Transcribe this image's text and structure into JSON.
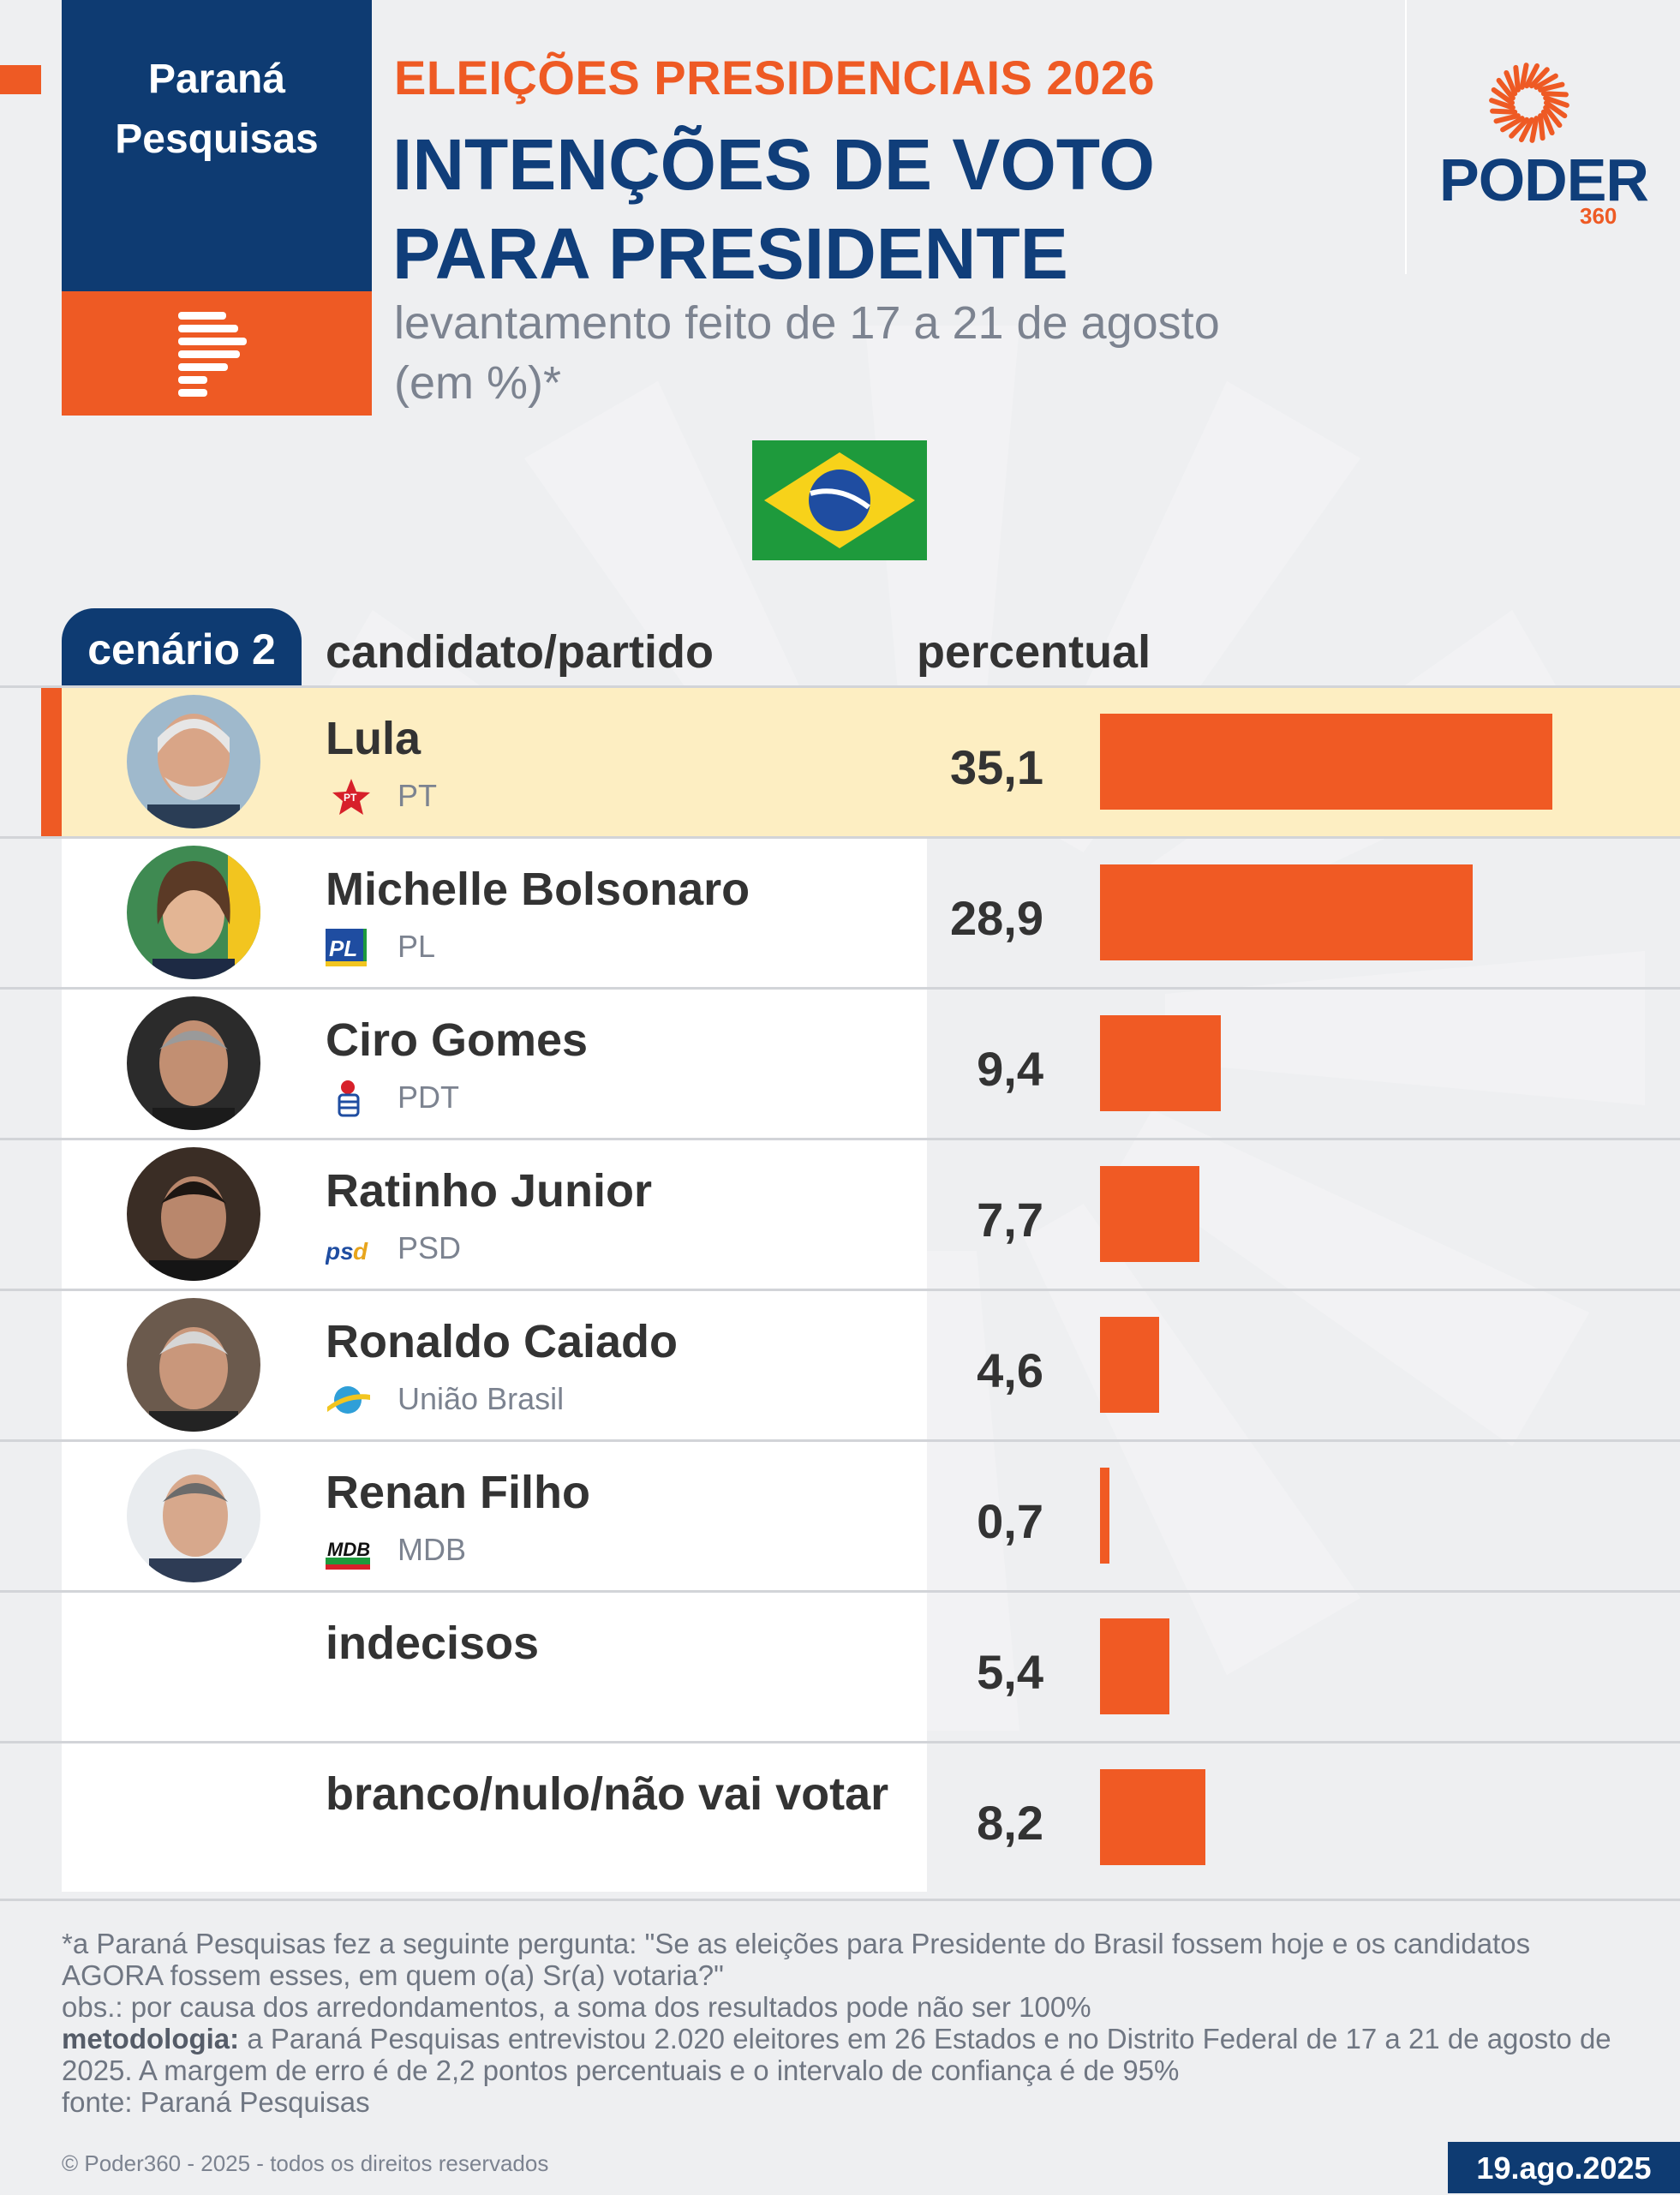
{
  "brand": {
    "pollster_line1": "Paraná",
    "pollster_line2": "Pesquisas",
    "publisher": "PODER",
    "publisher_sub": "360"
  },
  "header": {
    "kicker": "ELEIÇÕES PRESIDENCIAIS 2026",
    "title_line1": "INTENÇÕES DE VOTO",
    "title_line2": "PARA PRESIDENTE",
    "subtitle_line1": "levantamento feito de 17 a 21 de agosto",
    "subtitle_line2": "(em %)*"
  },
  "table": {
    "scenario": "cenário 2",
    "col_candidate": "candidato/partido",
    "col_percent": "percentual"
  },
  "colors": {
    "navy": "#0e3b72",
    "orange": "#ee5a24",
    "highlight": "#fdeec2"
  },
  "chart_data": {
    "type": "bar",
    "orientation": "horizontal",
    "categories": [
      "Lula",
      "Michelle Bolsonaro",
      "Ciro Gomes",
      "Ratinho Junior",
      "Ronaldo Caiado",
      "Renan Filho",
      "indecisos",
      "branco/nulo/não vai votar"
    ],
    "values": [
      35.1,
      28.9,
      9.4,
      7.7,
      4.6,
      0.7,
      5.4,
      8.2
    ],
    "value_labels": [
      "35,1",
      "28,9",
      "9,4",
      "7,7",
      "4,6",
      "0,7",
      "5,4",
      "8,2"
    ],
    "parties": [
      "PT",
      "PL",
      "PDT",
      "PSD",
      "União Brasil",
      "MDB",
      "",
      ""
    ],
    "highlighted": "Lula",
    "xlim": [
      0,
      35.1
    ]
  },
  "footer": {
    "note1": "*a Paraná Pesquisas fez a seguinte pergunta: \"Se as eleições para Presidente do Brasil fossem hoje e os candidatos AGORA fossem esses, em quem o(a) Sr(a) votaria?\"",
    "note2": "obs.: por causa dos arredondamentos, a soma dos resultados pode não ser 100%",
    "method_label": "metodologia:",
    "method_text": " a Paraná Pesquisas entrevistou 2.020 eleitores em 26 Estados e no Distrito Federal de 17 a 21 de agosto de 2025. A margem de erro é de 2,2 pontos percentuais e o intervalo de confiança é de 95%",
    "source": "fonte: Paraná Pesquisas",
    "copyright": "© Poder360 - 2025 - todos os direitos reservados",
    "date": "19.ago.2025"
  }
}
